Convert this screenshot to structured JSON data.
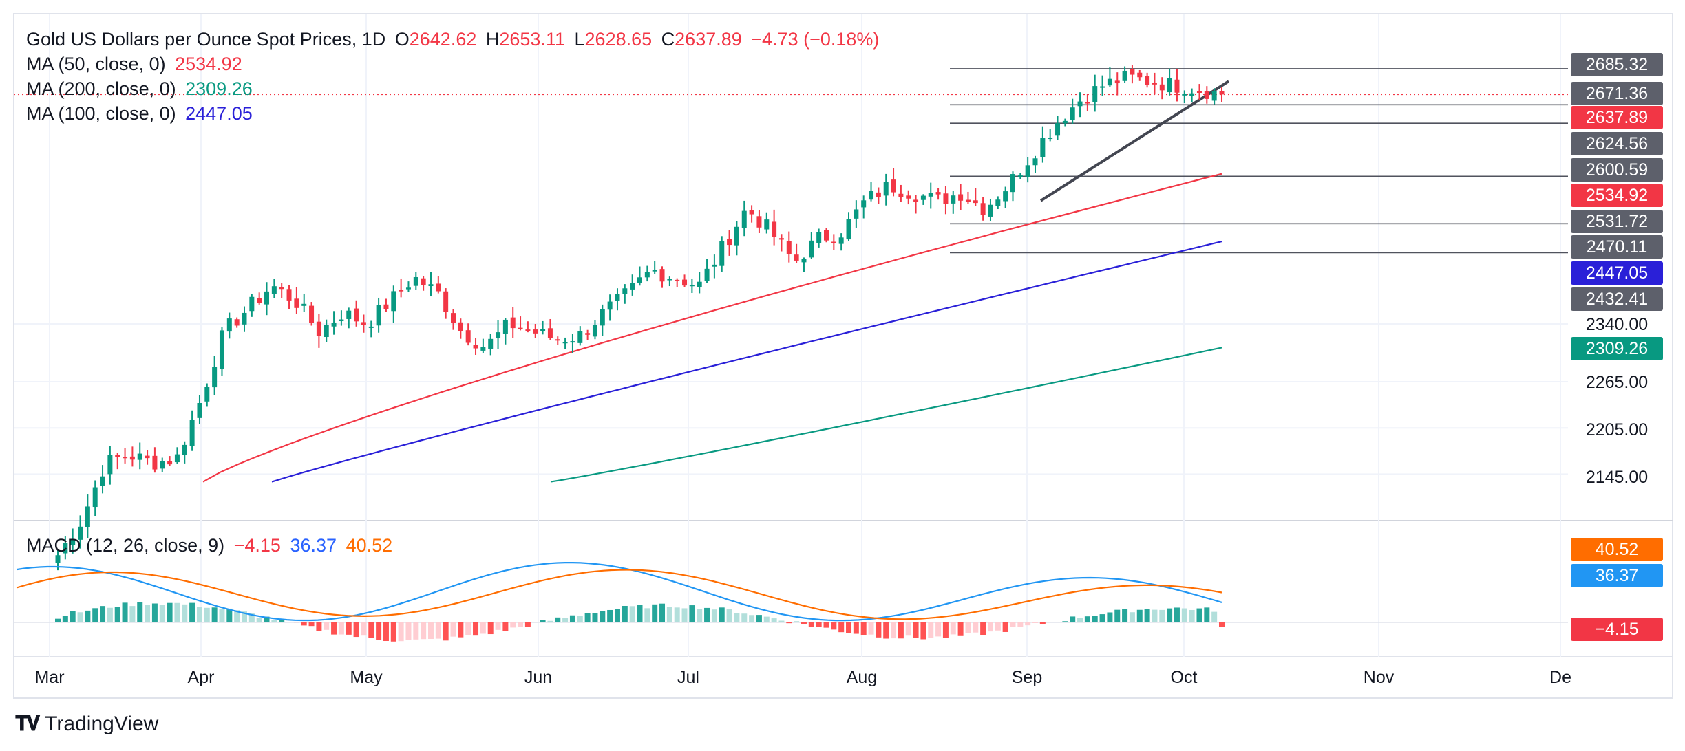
{
  "legend": {
    "symbol": "Gold US Dollars per Ounce Spot Prices, 1D",
    "o_label": "O",
    "o_value": "2642.62",
    "h_label": "H",
    "h_value": "2653.11",
    "l_label": "L",
    "l_value": "2628.65",
    "c_label": "C",
    "c_value": "2637.89",
    "change": "−4.73 (−0.18%)",
    "ma50_label": "MA (50, close, 0)",
    "ma50_value": "2534.92",
    "ma200_label": "MA (200, close, 0)",
    "ma200_value": "2309.26",
    "ma100_label": "MA (100, close, 0)",
    "ma100_value": "2447.05",
    "macd_label": "MACD (12, 26, close, 9)",
    "macd_hist_value": "−4.15",
    "macd_value": "36.37",
    "macd_signal_value": "40.52"
  },
  "colors": {
    "up": "#089981",
    "down": "#f23645",
    "ma50": "#f23645",
    "ma100": "#2a20d8",
    "ma200": "#089981",
    "macd": "#2196f3",
    "signal": "#ff6d00",
    "hist_up_strong": "#26a69a",
    "hist_up_weak": "#b2dfdb",
    "hist_down_strong": "#ff5252",
    "hist_down_weak": "#ffcdd2"
  },
  "chart_data": {
    "type": "candlestick",
    "title": "Gold US Dollars per Ounce Spot Prices, 1D",
    "price_axis_ticks": [
      "2340.00",
      "2265.00",
      "2205.00",
      "2145.00"
    ],
    "price_badges": [
      {
        "value": "2685.32",
        "style": "gray"
      },
      {
        "value": "2671.36",
        "style": "gray"
      },
      {
        "value": "2637.89",
        "style": "red"
      },
      {
        "value": "2624.56",
        "style": "gray"
      },
      {
        "value": "2600.59",
        "style": "gray"
      },
      {
        "value": "2534.92",
        "style": "red"
      },
      {
        "value": "2531.72",
        "style": "gray"
      },
      {
        "value": "2470.11",
        "style": "gray"
      },
      {
        "value": "2447.05",
        "style": "blue"
      },
      {
        "value": "2432.41",
        "style": "gray"
      },
      {
        "value": "2309.26",
        "style": "green"
      }
    ],
    "macd_badges": [
      {
        "value": "40.52",
        "style": "orange"
      },
      {
        "value": "36.37",
        "style": "blue"
      },
      {
        "value": "−4.15",
        "style": "red"
      }
    ],
    "time_axis_labels": [
      "Mar",
      "Apr",
      "May",
      "Jun",
      "Jul",
      "Aug",
      "Sep",
      "Oct",
      "Nov",
      "De"
    ],
    "ohlc_weekly_path": [
      2040,
      2085,
      2160,
      2170,
      2160,
      2165,
      2240,
      2330,
      2360,
      2390,
      2370,
      2330,
      2355,
      2340,
      2370,
      2400,
      2380,
      2330,
      2310,
      2340,
      2330,
      2320,
      2325,
      2355,
      2380,
      2410,
      2400,
      2390,
      2440,
      2490,
      2460,
      2420,
      2450,
      2460,
      2500,
      2520,
      2510,
      2500,
      2510,
      2490,
      2520,
      2560,
      2600,
      2630,
      2650,
      2660,
      2655,
      2650,
      2645,
      2638
    ],
    "horizontal_levels": [
      2671.36,
      2624.56,
      2600.59,
      2531.72,
      2470.11,
      2432.41
    ],
    "trendline": {
      "from": 2500,
      "to": 2655
    },
    "ma50_last": 2534.92,
    "ma100_last": 2447.05,
    "ma200_last": 2309.26,
    "macd_last": 36.37,
    "signal_last": 40.52,
    "hist_last": -4.15
  },
  "footer": {
    "brand": "TradingView"
  }
}
